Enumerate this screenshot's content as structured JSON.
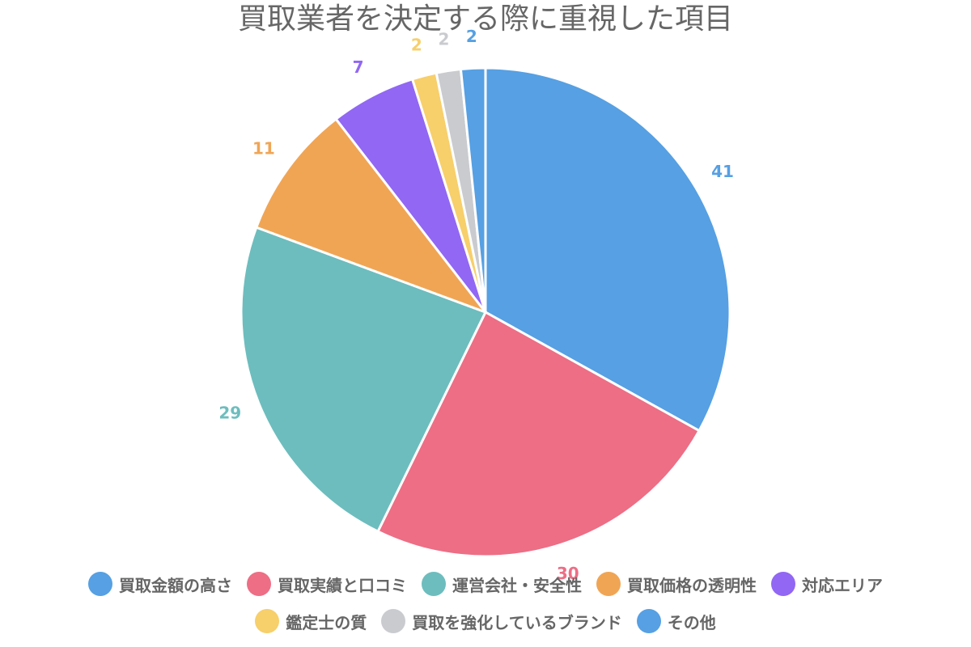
{
  "chart_data": {
    "type": "pie",
    "title": "買取業者を決定する際に重視した項目",
    "categories": [
      "買取金額の高さ",
      "買取実績と口コミ",
      "運営会社・安全性",
      "買取価格の透明性",
      "対応エリア",
      "鑑定士の質",
      "買取を強化しているブランド",
      "その他"
    ],
    "values": [
      41,
      30,
      29,
      11,
      7,
      2,
      2,
      2
    ],
    "colors": [
      "#56A0E3",
      "#ED6E85",
      "#6DBDBE",
      "#F0A555",
      "#9167F4",
      "#F7CF6B",
      "#C9CBCF",
      "#56A0E3"
    ],
    "data_labels": [
      "41",
      "30",
      "29",
      "11",
      "7",
      "2",
      "2",
      "2"
    ],
    "legend_position": "bottom"
  }
}
